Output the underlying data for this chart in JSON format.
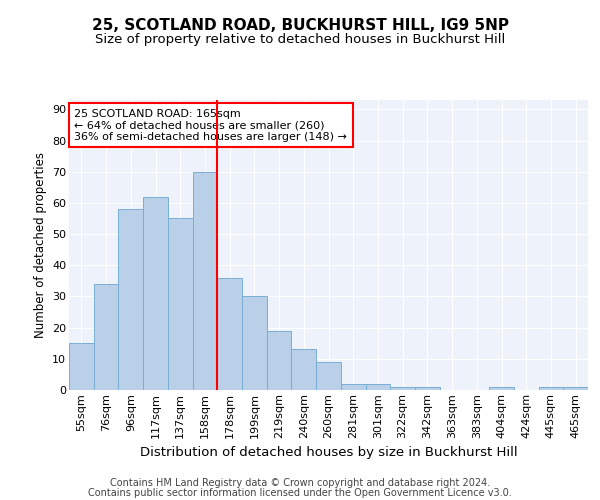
{
  "title1": "25, SCOTLAND ROAD, BUCKHURST HILL, IG9 5NP",
  "title2": "Size of property relative to detached houses in Buckhurst Hill",
  "xlabel": "Distribution of detached houses by size in Buckhurst Hill",
  "ylabel": "Number of detached properties",
  "categories": [
    "55sqm",
    "76sqm",
    "96sqm",
    "117sqm",
    "137sqm",
    "158sqm",
    "178sqm",
    "199sqm",
    "219sqm",
    "240sqm",
    "260sqm",
    "281sqm",
    "301sqm",
    "322sqm",
    "342sqm",
    "363sqm",
    "383sqm",
    "404sqm",
    "424sqm",
    "445sqm",
    "465sqm"
  ],
  "values": [
    15,
    34,
    58,
    62,
    55,
    70,
    36,
    30,
    19,
    13,
    9,
    2,
    2,
    1,
    1,
    0,
    0,
    1,
    0,
    1,
    1
  ],
  "bar_color": "#bad0e8",
  "bar_edge_color": "#7aaed4",
  "background_color": "#eef2fb",
  "grid_color": "#ffffff",
  "vline_x": 5.0,
  "vline_color": "red",
  "annotation_text": "25 SCOTLAND ROAD: 165sqm\n← 64% of detached houses are smaller (260)\n36% of semi-detached houses are larger (148) →",
  "annotation_box_color": "red",
  "ylim": [
    0,
    93
  ],
  "yticks": [
    0,
    10,
    20,
    30,
    40,
    50,
    60,
    70,
    80,
    90
  ],
  "footnote_line1": "Contains HM Land Registry data © Crown copyright and database right 2024.",
  "footnote_line2": "Contains public sector information licensed under the Open Government Licence v3.0.",
  "title1_fontsize": 11,
  "title2_fontsize": 9.5,
  "xlabel_fontsize": 9.5,
  "ylabel_fontsize": 8.5,
  "tick_fontsize": 8,
  "annot_fontsize": 8,
  "footnote_fontsize": 7
}
